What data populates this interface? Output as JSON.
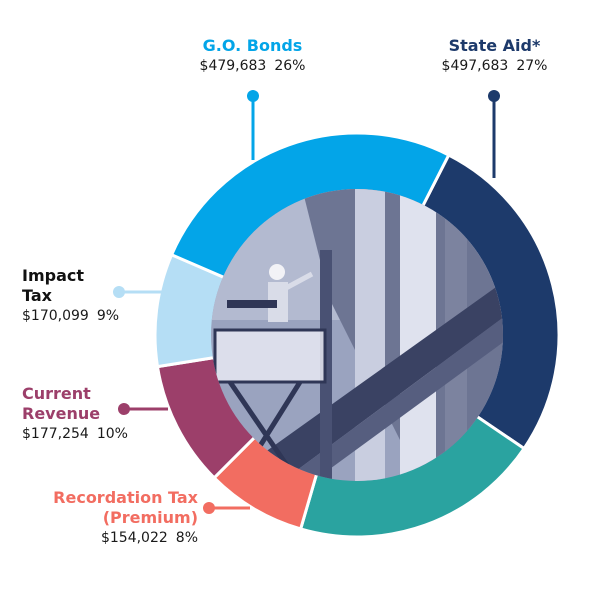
{
  "chart_data": {
    "type": "pie",
    "title": "",
    "donut": true,
    "center_image": "photo of a construction worker on a lift beside a steel building frame",
    "slices": [
      {
        "label": "State Aid*",
        "amount": "$497,683",
        "percent_label": "27%",
        "value": 27,
        "color": "#1d3a6b"
      },
      {
        "label": "",
        "amount": "",
        "percent_label": "",
        "value": 20,
        "color": "#2aa3a0"
      },
      {
        "label": "Recordation Tax (Premium)",
        "label_lines": [
          "Recordation Tax",
          "(Premium)"
        ],
        "amount": "$154,022",
        "percent_label": "8%",
        "value": 8,
        "color": "#f26d61"
      },
      {
        "label": "Current Revenue",
        "label_lines": [
          "Current",
          "Revenue"
        ],
        "amount": "$177,254",
        "percent_label": "10%",
        "value": 10,
        "color": "#9c3f6a"
      },
      {
        "label": "Impact Tax",
        "label_lines": [
          "Impact",
          "Tax"
        ],
        "amount": "$170,099",
        "percent_label": "9%",
        "value": 9,
        "color": "#b5def5"
      },
      {
        "label": "G.O. Bonds",
        "amount": "$479,683",
        "percent_label": "26%",
        "value": 26,
        "color": "#03a5e8"
      }
    ],
    "label_colors": {
      "go_bonds": "#03a5e8",
      "state_aid": "#1d3a6b",
      "impact_tax": "#111111",
      "current_revenue": "#9c3f6a",
      "recordation_tax": "#f26d61"
    }
  }
}
